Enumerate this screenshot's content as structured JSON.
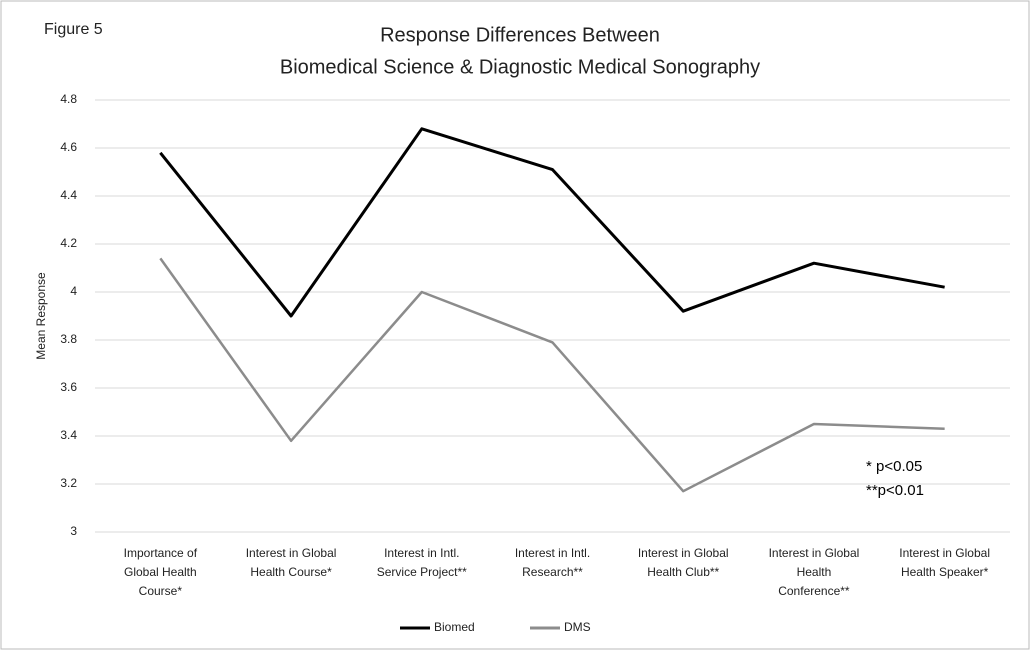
{
  "chart_data": {
    "type": "line",
    "figure_label": "Figure 5",
    "title": [
      "Response Differences Between",
      "Biomedical Science & Diagnostic Medical Sonography"
    ],
    "y_label": "Mean Response",
    "categories": [
      "Importance of Global Health Course*",
      "Interest in Global Health Course*",
      "Interest in Intl. Service Project**",
      "Interest in Intl. Research**",
      "Interest in Global Health Club**",
      "Interest in Global Health Conference**",
      "Interest in Global Health Speaker*"
    ],
    "series": [
      {
        "name": "Biomed",
        "color": "#000000",
        "values": [
          4.58,
          3.9,
          4.68,
          4.51,
          3.92,
          4.12,
          4.02
        ]
      },
      {
        "name": "DMS",
        "color": "#8c8c8c",
        "values": [
          4.14,
          3.38,
          4.0,
          3.79,
          3.17,
          3.45,
          3.43
        ]
      }
    ],
    "ylim": [
      3,
      4.8
    ],
    "yticks": [
      3,
      3.2,
      3.4,
      3.6,
      3.8,
      4,
      4.2,
      4.4,
      4.6,
      4.8
    ],
    "grid": true,
    "legend": "bottom",
    "annotations": [
      "* p<0.05",
      "**p<0.01"
    ]
  }
}
